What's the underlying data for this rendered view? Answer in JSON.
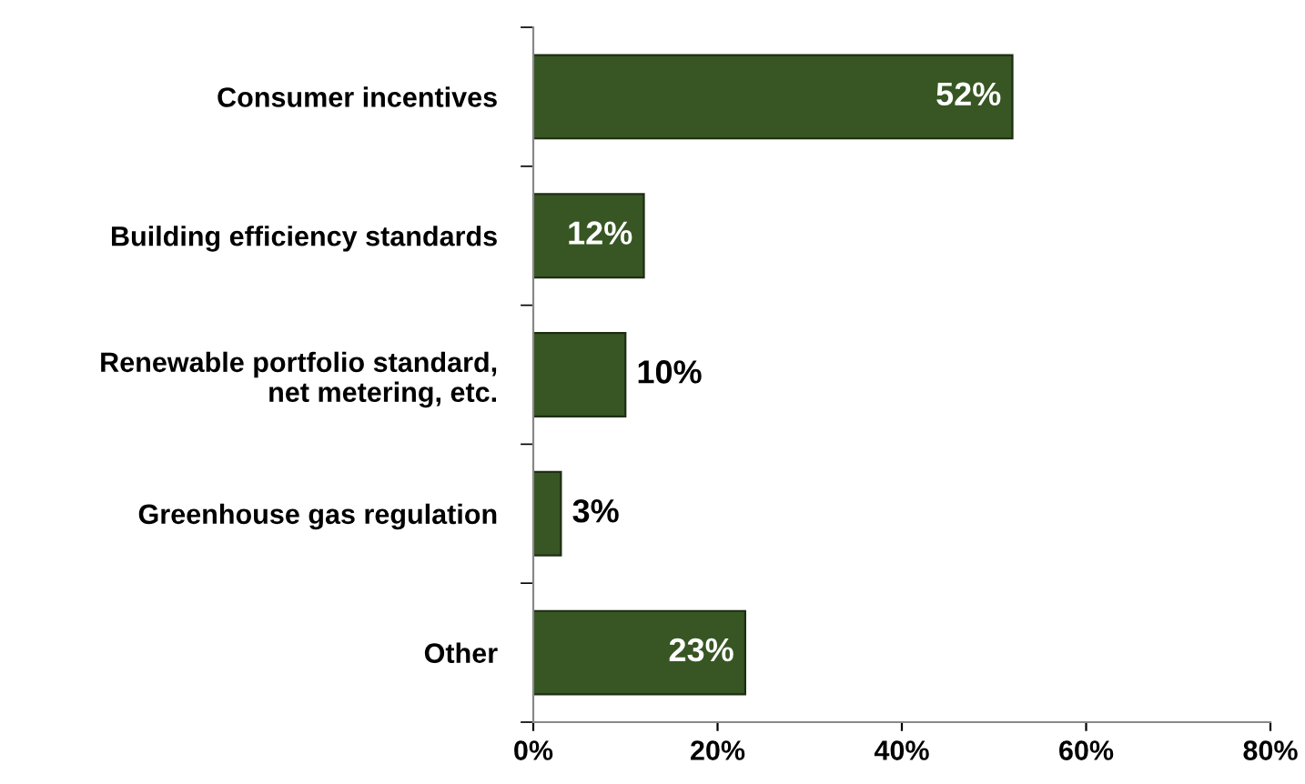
{
  "chart_data": {
    "type": "bar",
    "orientation": "horizontal",
    "categories": [
      "Consumer incentives",
      "Building efficiency standards",
      "Renewable portfolio standard,\nnet metering, etc.",
      "Greenhouse gas regulation",
      "Other"
    ],
    "values": [
      52,
      12,
      10,
      3,
      23
    ],
    "value_labels": [
      "52%",
      "12%",
      "10%",
      "3%",
      "23%"
    ],
    "color": "#375623",
    "xlim": [
      0,
      80
    ],
    "xticks": [
      {
        "value": 0,
        "label": "0%"
      },
      {
        "value": 20,
        "label": "20%"
      },
      {
        "value": 40,
        "label": "40%"
      },
      {
        "value": 60,
        "label": "60%"
      },
      {
        "value": 80,
        "label": "80%"
      }
    ],
    "grid": false,
    "legend": false
  }
}
